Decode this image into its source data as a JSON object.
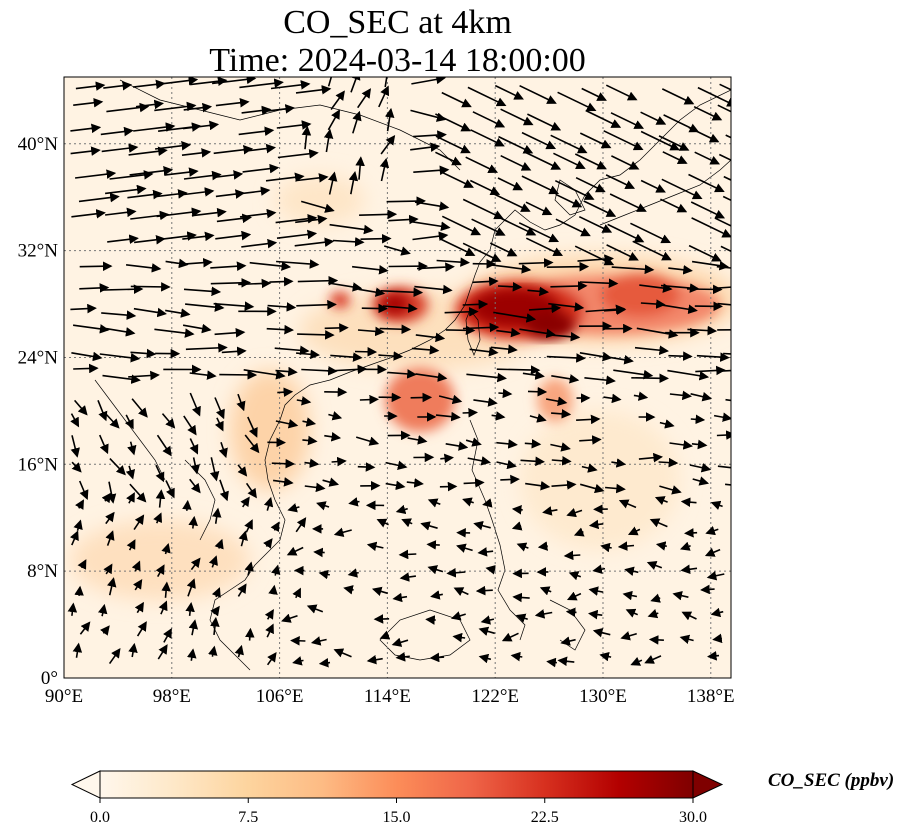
{
  "title": {
    "line1": "CO_SEC at 4km",
    "line2": "Time: 2024-03-14 18:00:00"
  },
  "map": {
    "lon_range": [
      90,
      139.5
    ],
    "lat_range": [
      0,
      45
    ],
    "x_ticks": [
      "90°E",
      "98°E",
      "106°E",
      "114°E",
      "122°E",
      "130°E",
      "138°E"
    ],
    "x_tick_values": [
      90,
      98,
      106,
      114,
      122,
      130,
      138
    ],
    "y_ticks": [
      "0°",
      "8°N",
      "16°N",
      "24°N",
      "32°N",
      "40°N"
    ],
    "y_tick_values": [
      0,
      8,
      16,
      24,
      32,
      40
    ],
    "gridlines": true,
    "overlay": "wind vectors",
    "colormap": "OrRd"
  },
  "colorbar": {
    "label": "CO_SEC (ppbv)",
    "min": 0.0,
    "max": 30.0,
    "ticks": [
      "0.0",
      "7.5",
      "15.0",
      "22.5",
      "30.0"
    ],
    "extend": "both",
    "colors": [
      "#fff7ec",
      "#fee8c8",
      "#fdd49e",
      "#fdbb84",
      "#fc8d59",
      "#ef6548",
      "#d7301f",
      "#b30000",
      "#7f0000"
    ]
  }
}
